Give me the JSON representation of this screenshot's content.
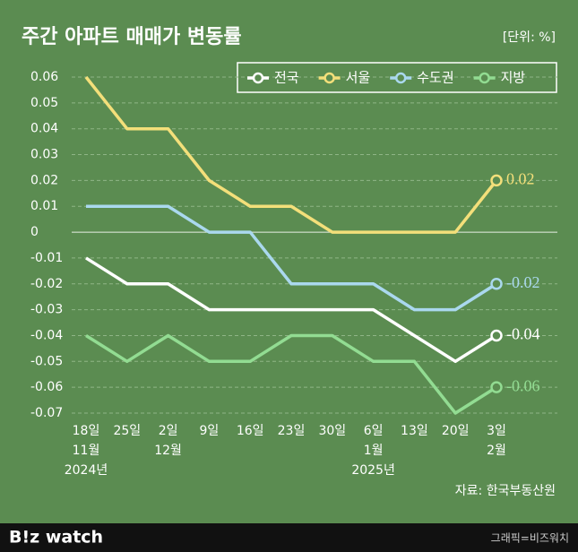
{
  "chart_data": {
    "type": "line",
    "title": "주간 아파트 매매가 변동률",
    "unit": "[단위: %]",
    "categories": [
      [
        "18일",
        "11월",
        "2024년"
      ],
      [
        "25일"
      ],
      [
        "2일",
        "12월"
      ],
      [
        "9일"
      ],
      [
        "16일"
      ],
      [
        "23일"
      ],
      [
        "30일"
      ],
      [
        "6일",
        "1월",
        "2025년"
      ],
      [
        "13일"
      ],
      [
        "20일"
      ],
      [
        "3일",
        "2월"
      ]
    ],
    "series": [
      {
        "name": "전국",
        "color": "#ffffff",
        "values": [
          -0.01,
          -0.02,
          -0.02,
          -0.03,
          -0.03,
          -0.03,
          -0.03,
          -0.03,
          -0.04,
          -0.05,
          -0.04
        ]
      },
      {
        "name": "서울",
        "color": "#f3df7a",
        "values": [
          0.06,
          0.04,
          0.04,
          0.02,
          0.01,
          0.01,
          0,
          0,
          0,
          0,
          0.02
        ]
      },
      {
        "name": "수도권",
        "color": "#aad8ee",
        "values": [
          0.01,
          0.01,
          0.01,
          0,
          0,
          -0.02,
          -0.02,
          -0.02,
          -0.03,
          -0.03,
          -0.02
        ]
      },
      {
        "name": "지방",
        "color": "#92dc92",
        "values": [
          -0.04,
          -0.05,
          -0.04,
          -0.05,
          -0.05,
          -0.04,
          -0.04,
          -0.05,
          -0.05,
          -0.07,
          -0.06
        ]
      }
    ],
    "label_last": true,
    "ylim": [
      -0.07,
      0.06
    ],
    "yticks": [
      0.06,
      0.05,
      0.04,
      0.03,
      0.02,
      0.01,
      0,
      -0.01,
      -0.02,
      -0.03,
      -0.04,
      -0.05,
      -0.06,
      -0.07
    ],
    "grid": true,
    "legend": "top-right",
    "source": "자료: 한국부동산원",
    "logo": "B!z watch",
    "credit": "그래픽=비즈워치"
  }
}
